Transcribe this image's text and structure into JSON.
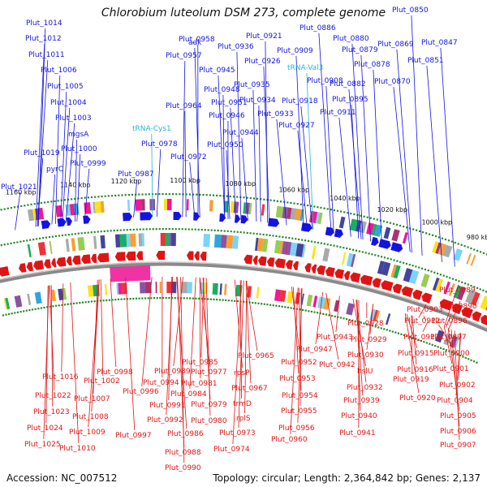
{
  "header": {
    "organism": "Chlorobium luteolum DSM 273, complete genome"
  },
  "footer": {
    "accession": "Accession: NC_007512",
    "topology": "Topology: circular; Length: 2,364,842 bp; Genes: 2,137"
  },
  "colors": {
    "forward": "#1414e0",
    "reverse": "#e01414",
    "rna": "#22b4d8",
    "backbone": "#8a8a8a",
    "tick": "#2a8a2a"
  },
  "scale": [
    {
      "label": "980 kbp"
    },
    {
      "label": "1000 kbp"
    },
    {
      "label": "1020 kbp"
    },
    {
      "label": "1040 kbp"
    },
    {
      "label": "1060 kbp"
    },
    {
      "label": "1080 kbp"
    },
    {
      "label": "1100 kbp"
    },
    {
      "label": "1120 kbp"
    },
    {
      "label": "1140 kbp"
    },
    {
      "label": "1160 kbp"
    }
  ],
  "top_labels": [
    {
      "text": "Plut_0850",
      "type": "fwd"
    },
    {
      "text": "Plut_0847",
      "type": "fwd"
    },
    {
      "text": "Plut_0851",
      "type": "fwd"
    },
    {
      "text": "Plut_0869",
      "type": "fwd"
    },
    {
      "text": "Plut_0870",
      "type": "fwd"
    },
    {
      "text": "Plut_0878",
      "type": "fwd"
    },
    {
      "text": "Plut_0879",
      "type": "fwd"
    },
    {
      "text": "Plut_0880",
      "type": "fwd"
    },
    {
      "text": "Plut_0882",
      "type": "fwd"
    },
    {
      "text": "Plut_0886",
      "type": "fwd"
    },
    {
      "text": "Plut_0895",
      "type": "fwd"
    },
    {
      "text": "Plut_0908",
      "type": "fwd"
    },
    {
      "text": "Plut_0909",
      "type": "fwd"
    },
    {
      "text": "Plut_0911",
      "type": "fwd"
    },
    {
      "text": "Plut_0918",
      "type": "fwd"
    },
    {
      "text": "Plut_0921",
      "type": "fwd"
    },
    {
      "text": "tRNA-Val3",
      "type": "rna"
    },
    {
      "text": "Plut_0926",
      "type": "fwd"
    },
    {
      "text": "Plut_0927",
      "type": "fwd"
    },
    {
      "text": "Plut_0933",
      "type": "fwd"
    },
    {
      "text": "Plut_0934",
      "type": "fwd"
    },
    {
      "text": "Plut_0935",
      "type": "fwd"
    },
    {
      "text": "Plut_0936",
      "type": "fwd"
    },
    {
      "text": "Plut_0944",
      "type": "fwd"
    },
    {
      "text": "Plut_0945",
      "type": "fwd"
    },
    {
      "text": "Plut_0946",
      "type": "fwd"
    },
    {
      "text": "Plut_0948",
      "type": "fwd"
    },
    {
      "text": "Plut_0950",
      "type": "fwd"
    },
    {
      "text": "Plut_0951",
      "type": "fwd"
    },
    {
      "text": "adk",
      "type": "fwd"
    },
    {
      "text": "Plut_0957",
      "type": "fwd"
    },
    {
      "text": "Plut_0958",
      "type": "fwd"
    },
    {
      "text": "Plut_0964",
      "type": "fwd"
    },
    {
      "text": "tRNA-Cys1",
      "type": "rna"
    },
    {
      "text": "Plut_0972",
      "type": "fwd"
    },
    {
      "text": "Plut_0978",
      "type": "fwd"
    },
    {
      "text": "Plut_0987",
      "type": "fwd"
    },
    {
      "text": "Plut_0999",
      "type": "fwd"
    },
    {
      "text": "Plut_1000",
      "type": "fwd"
    },
    {
      "text": "mgsA",
      "type": "fwd"
    },
    {
      "text": "Plut_1003",
      "type": "fwd"
    },
    {
      "text": "Plut_1004",
      "type": "fwd"
    },
    {
      "text": "Plut_1005",
      "type": "fwd"
    },
    {
      "text": "Plut_1006",
      "type": "fwd"
    },
    {
      "text": "pyrC",
      "type": "fwd"
    },
    {
      "text": "Plut_1011",
      "type": "fwd"
    },
    {
      "text": "Plut_1012",
      "type": "fwd"
    },
    {
      "text": "Plut_1014",
      "type": "fwd"
    },
    {
      "text": "Plut_1019",
      "type": "fwd"
    },
    {
      "text": "Plut_1021",
      "type": "fwd"
    }
  ],
  "bottom_labels": [
    {
      "text": "Plut_0889"
    },
    {
      "text": "Plut_0890"
    },
    {
      "text": "Plut_0903"
    },
    {
      "text": "Plut_0896"
    },
    {
      "text": "Plut_0897"
    },
    {
      "text": "Plut_0912"
    },
    {
      "text": "Plut_0913"
    },
    {
      "text": "Plut_0900"
    },
    {
      "text": "Plut_0915"
    },
    {
      "text": "Plut_0901"
    },
    {
      "text": "Plut_0916"
    },
    {
      "text": "Plut_0919"
    },
    {
      "text": "Plut_0902"
    },
    {
      "text": "Plut_0904"
    },
    {
      "text": "Plut_0920"
    },
    {
      "text": "Plut_0905"
    },
    {
      "text": "Plut_0906"
    },
    {
      "text": "Plut_0907"
    },
    {
      "text": "Plut_0928"
    },
    {
      "text": "Plut_0929"
    },
    {
      "text": "Plut_0930"
    },
    {
      "text": "hslU"
    },
    {
      "text": "Plut_0932"
    },
    {
      "text": "Plut_0939"
    },
    {
      "text": "Plut_0940"
    },
    {
      "text": "Plut_0941"
    },
    {
      "text": "Plut_0943"
    },
    {
      "text": "Plut_0947"
    },
    {
      "text": "Plut_0942"
    },
    {
      "text": "Plut_0952"
    },
    {
      "text": "Plut_0953"
    },
    {
      "text": "Plut_0954"
    },
    {
      "text": "Plut_0955"
    },
    {
      "text": "Plut_0956"
    },
    {
      "text": "Plut_0960"
    },
    {
      "text": "Plut_0965"
    },
    {
      "text": "rpsP"
    },
    {
      "text": "Plut_0967"
    },
    {
      "text": "trmD"
    },
    {
      "text": "rplS"
    },
    {
      "text": "Plut_0973"
    },
    {
      "text": "Plut_0974"
    },
    {
      "text": "Plut_0977"
    },
    {
      "text": "Plut_0979"
    },
    {
      "text": "Plut_0980"
    },
    {
      "text": "Plut_0981"
    },
    {
      "text": "Plut_0985"
    },
    {
      "text": "Plut_0984"
    },
    {
      "text": "Plut_0989"
    },
    {
      "text": "Plut_0986"
    },
    {
      "text": "Plut_0988"
    },
    {
      "text": "Plut_0990"
    },
    {
      "text": "Plut_0994"
    },
    {
      "text": "Plut_0991"
    },
    {
      "text": "Plut_0992"
    },
    {
      "text": "Plut_0996"
    },
    {
      "text": "Plut_0997"
    },
    {
      "text": "Plut_0998"
    },
    {
      "text": "Plut_1002"
    },
    {
      "text": "Plut_1016"
    },
    {
      "text": "Plut_1007"
    },
    {
      "text": "Plut_1008"
    },
    {
      "text": "Plut_1009"
    },
    {
      "text": "Plut_1010"
    },
    {
      "text": "Plut_1022"
    },
    {
      "text": "Plut_1023"
    },
    {
      "text": "Plut_1024"
    },
    {
      "text": "Plut_1025"
    }
  ]
}
